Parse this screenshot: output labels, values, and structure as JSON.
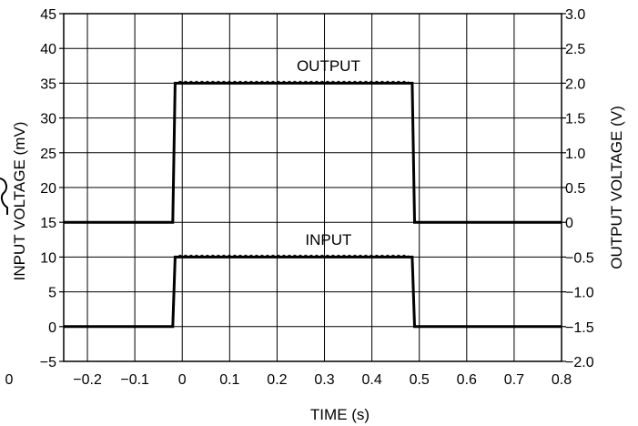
{
  "chart_data": {
    "type": "line",
    "title": "",
    "xlabel": "TIME (s)",
    "ylabel_left": "INPUT VOLTAGE (mV)",
    "ylabel_right": "OUTPUT VOLTAGE (V)",
    "xlim": [
      -0.25,
      0.8
    ],
    "ylim_left": [
      -5,
      45
    ],
    "ylim_right": [
      -2.0,
      3.0
    ],
    "grid": true,
    "legend": "none",
    "x_ticks": [
      "−0.2",
      "−0.1",
      "0",
      "0.1",
      "0.2",
      "0.3",
      "0.4",
      "0.5",
      "0.6",
      "0.7",
      "0.8"
    ],
    "x_tick_values": [
      -0.2,
      -0.1,
      0,
      0.1,
      0.2,
      0.3,
      0.4,
      0.5,
      0.6,
      0.7,
      0.8
    ],
    "y_left_ticks": [
      "−5",
      "0",
      "5",
      "10",
      "15",
      "20",
      "25",
      "30",
      "35",
      "40",
      "45"
    ],
    "y_left_tick_values": [
      -5,
      0,
      5,
      10,
      15,
      20,
      25,
      30,
      35,
      40,
      45
    ],
    "y_right_ticks": [
      "−2.0",
      "−1.5",
      "−1.0",
      "−0.5",
      "0",
      "0.5",
      "1.0",
      "1.5",
      "2.0",
      "2.5",
      "3.0"
    ],
    "y_right_tick_values": [
      -2.0,
      -1.5,
      -1.0,
      -0.5,
      0,
      0.5,
      1.0,
      1.5,
      2.0,
      2.5,
      3.0
    ],
    "edge_labels": {
      "left_partial_tick": "0"
    },
    "series": [
      {
        "name": "OUTPUT",
        "axis": "right",
        "x": [
          -0.25,
          -0.02,
          -0.015,
          0.485,
          0.49,
          0.8
        ],
        "y": [
          0,
          0,
          2.0,
          2.0,
          0,
          0
        ]
      },
      {
        "name": "INPUT",
        "axis": "left",
        "x": [
          -0.25,
          -0.02,
          -0.015,
          0.485,
          0.49,
          0.8
        ],
        "y": [
          0,
          0,
          10,
          10,
          0,
          0
        ]
      }
    ],
    "annotations": [
      {
        "text": "OUTPUT",
        "x": 0.27,
        "y_axis": "right",
        "y": 2.2
      },
      {
        "text": "INPUT",
        "x": 0.27,
        "y_axis": "left",
        "y": 12
      }
    ]
  }
}
